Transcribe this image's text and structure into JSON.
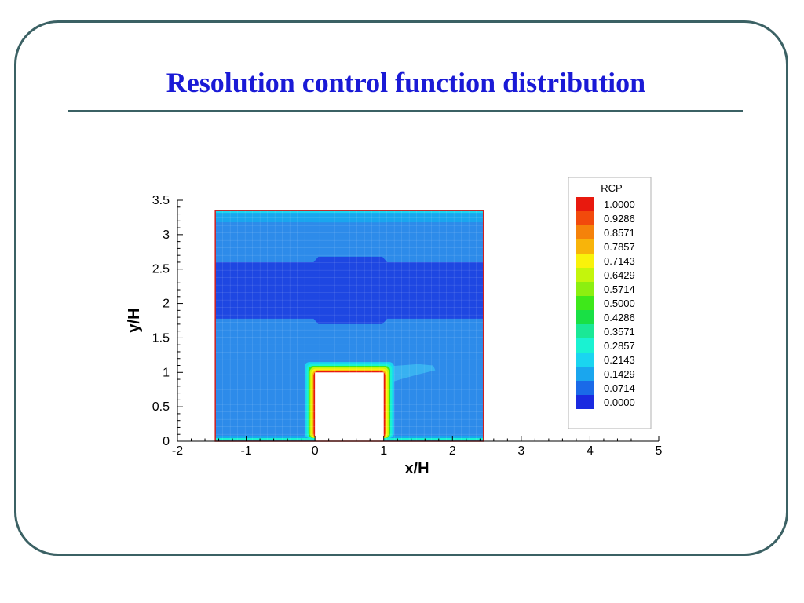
{
  "slide": {
    "title": "Resolution control function distribution"
  },
  "colors": {
    "frame": "#3b6164",
    "title": "#1a1ad6"
  },
  "chart_data": {
    "type": "heatmap",
    "xlabel": "x/H",
    "ylabel": "y/H",
    "xlim": [
      -2,
      5
    ],
    "ylim": [
      0,
      3.5
    ],
    "xticks": [
      "-2",
      "-1",
      "0",
      "1",
      "2",
      "3",
      "4",
      "5"
    ],
    "yticks": [
      "0",
      "0.5",
      "1",
      "1.5",
      "2",
      "2.5",
      "3",
      "3.5"
    ],
    "domain": {
      "x": [
        -1.45,
        2.45
      ],
      "y": [
        0,
        3.35
      ]
    },
    "obstacle": {
      "x": [
        0,
        1
      ],
      "y": [
        0,
        1
      ]
    },
    "legend": {
      "title": "RCP",
      "levels": [
        {
          "label": "1.0000",
          "color": "#e8190e"
        },
        {
          "label": "0.9286",
          "color": "#f24a0c"
        },
        {
          "label": "0.8571",
          "color": "#f5820a"
        },
        {
          "label": "0.7857",
          "color": "#f8b40a"
        },
        {
          "label": "0.7143",
          "color": "#f9f20b"
        },
        {
          "label": "0.6429",
          "color": "#c4f50c"
        },
        {
          "label": "0.5714",
          "color": "#8cef10"
        },
        {
          "label": "0.5000",
          "color": "#3ee81a"
        },
        {
          "label": "0.4286",
          "color": "#19e045"
        },
        {
          "label": "0.3571",
          "color": "#1ae896"
        },
        {
          "label": "0.2857",
          "color": "#1af2d2"
        },
        {
          "label": "0.2143",
          "color": "#1ad5f0"
        },
        {
          "label": "0.1429",
          "color": "#1aa6ee"
        },
        {
          "label": "0.0714",
          "color": "#1a6ae8"
        },
        {
          "label": "0.0000",
          "color": "#1a2ae0"
        }
      ]
    },
    "field_regions": [
      {
        "name": "background",
        "value": 0.1071,
        "color": "#2d8bea"
      },
      {
        "name": "upper-wake-band",
        "value": 0.0714,
        "y": [
          1.78,
          2.6
        ],
        "color": "#1e47e2"
      },
      {
        "name": "top-layer",
        "value": 0.1429,
        "y": [
          3.18,
          3.35
        ],
        "color": "#1aa6ee"
      },
      {
        "name": "bottom-layer",
        "value": 0.1429,
        "y": [
          0,
          0.08
        ],
        "color": "#1aa6ee"
      }
    ]
  }
}
